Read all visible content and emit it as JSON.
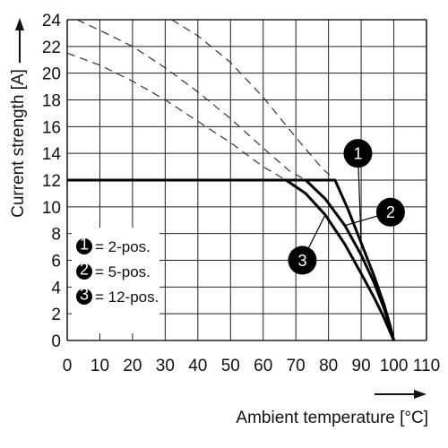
{
  "chart_data": {
    "type": "line",
    "title": "",
    "xlabel": "Ambient temperature [°C]",
    "ylabel": "Current strength [A]",
    "xlim": [
      0,
      110
    ],
    "ylim": [
      0,
      24
    ],
    "x_ticks": [
      "0",
      "10",
      "20",
      "30",
      "40",
      "50",
      "60",
      "70",
      "80",
      "90",
      "100",
      "110"
    ],
    "y_ticks": [
      "0",
      "2",
      "4",
      "6",
      "8",
      "10",
      "12",
      "14",
      "16",
      "18",
      "20",
      "22",
      "24"
    ],
    "grid": true,
    "series": [
      {
        "name": "2-pos.",
        "marker": "1",
        "points": [
          [
            0,
            12
          ],
          [
            82,
            12
          ],
          [
            86,
            9.8
          ],
          [
            90,
            7.3
          ],
          [
            94,
            4.8
          ],
          [
            97,
            2.7
          ],
          [
            99,
            1.0
          ],
          [
            100,
            0
          ]
        ],
        "dashed_points": [
          [
            32,
            24
          ],
          [
            40,
            22.8
          ],
          [
            50,
            20.8
          ],
          [
            60,
            18.2
          ],
          [
            70,
            15.2
          ],
          [
            78,
            12.9
          ],
          [
            82,
            12
          ]
        ]
      },
      {
        "name": "5-pos.",
        "marker": "2",
        "points": [
          [
            0,
            12
          ],
          [
            73,
            12
          ],
          [
            79,
            10.6
          ],
          [
            85,
            8.6
          ],
          [
            90,
            6.4
          ],
          [
            94,
            4.3
          ],
          [
            97,
            2.4
          ],
          [
            99,
            0.9
          ],
          [
            100,
            0
          ]
        ],
        "dashed_points": [
          [
            3,
            24
          ],
          [
            10,
            23.2
          ],
          [
            20,
            22.0
          ],
          [
            30,
            20.4
          ],
          [
            40,
            18.6
          ],
          [
            50,
            16.6
          ],
          [
            60,
            14.4
          ],
          [
            68,
            12.7
          ],
          [
            73,
            12
          ]
        ]
      },
      {
        "name": "12-pos.",
        "marker": "3",
        "points": [
          [
            0,
            12
          ],
          [
            67,
            12
          ],
          [
            73,
            11.0
          ],
          [
            79,
            9.4
          ],
          [
            85,
            7.2
          ],
          [
            90,
            5.0
          ],
          [
            94,
            3.2
          ],
          [
            97,
            1.7
          ],
          [
            100,
            0
          ]
        ],
        "dashed_points": [
          [
            0,
            21.5
          ],
          [
            10,
            20.6
          ],
          [
            20,
            19.4
          ],
          [
            30,
            18.0
          ],
          [
            40,
            16.4
          ],
          [
            50,
            14.8
          ],
          [
            60,
            13.0
          ],
          [
            67,
            12
          ]
        ]
      }
    ],
    "legend": {
      "placement": "bottom-left",
      "items": [
        {
          "marker": "1",
          "label": "= 2-pos."
        },
        {
          "marker": "2",
          "label": "= 5-pos."
        },
        {
          "marker": "3",
          "label": "= 12-pos."
        }
      ]
    },
    "callouts": [
      {
        "marker": "1",
        "x": 89,
        "y": 14
      },
      {
        "marker": "2",
        "x": 99,
        "y": 9.6
      },
      {
        "marker": "3",
        "x": 72,
        "y": 6.0
      }
    ]
  }
}
